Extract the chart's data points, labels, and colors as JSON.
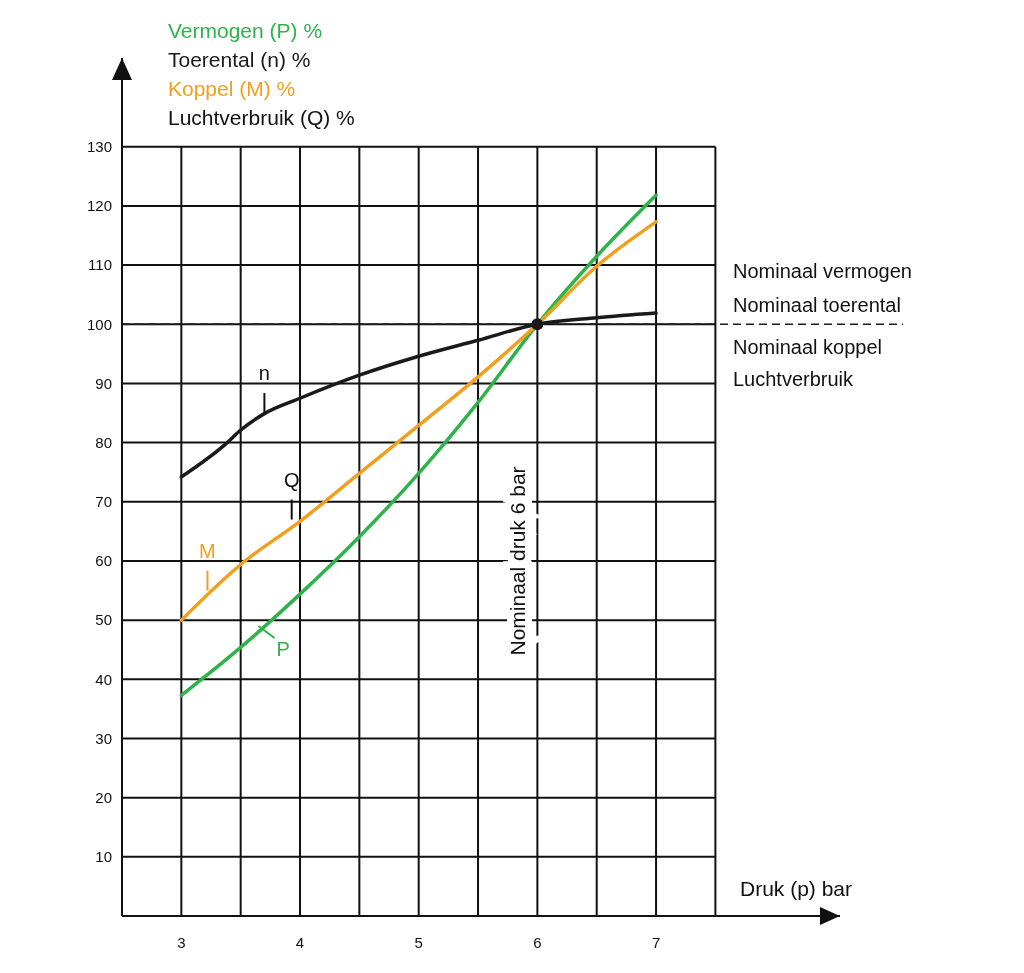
{
  "chart_data": {
    "type": "line",
    "x": [
      3,
      3.37,
      3.5,
      3.7,
      4,
      4.5,
      5,
      5.5,
      6,
      6.5,
      7
    ],
    "series": [
      {
        "name": "Vermogen (P) %",
        "color": "#2db34a",
        "x": [
          3,
          3.5,
          4,
          4.5,
          5,
          5.5,
          6,
          6.5,
          7
        ],
        "values": [
          37.3,
          45.4,
          54.4,
          64.1,
          74.8,
          86.8,
          100,
          111.5,
          121.8
        ]
      },
      {
        "name": "Toerental (n) %",
        "color": "#1a1a1a",
        "values": [
          74.2,
          79.7,
          82.1,
          84.9,
          87.5,
          91.4,
          94.6,
          97.3,
          100,
          101.1,
          101.9
        ]
      },
      {
        "name": "Koppel (M) %",
        "color": "#f0a01e",
        "x": [
          3,
          3.5,
          4,
          4.5,
          5,
          5.5,
          6,
          6.5,
          7
        ],
        "values": [
          50,
          59.4,
          66.7,
          74.8,
          82.9,
          91.1,
          100,
          109.8,
          117.3
        ]
      },
      {
        "type": "scatter",
        "color": "#1a1a1a",
        "x": [
          6
        ],
        "values": [
          100
        ],
        "marker": "circle"
      }
    ],
    "xlabel": "Druk (p) bar",
    "xlim": [
      2.5,
      8.55
    ],
    "xticks": [
      3,
      4,
      5,
      6,
      7
    ],
    "ylim": [
      0,
      145
    ],
    "yticks": [
      {
        "value": 0,
        "label": null
      },
      10,
      20,
      30,
      40,
      50,
      60,
      70,
      80,
      90,
      100,
      110,
      120,
      130
    ],
    "grid": true,
    "legend": "top left",
    "line_style": "solid",
    "ref_lines": [
      {
        "axis": "y",
        "value": 100,
        "line_style": "dashed",
        "color": "#1a1a1a"
      }
    ],
    "annotations": [
      "Luchtverbruik (Q) %",
      "Nominaal vermogen",
      "Nominaal toerental",
      "Nominaal koppel",
      "Luchtverbruik",
      "Nominaal druk 6 bar",
      {
        "text": "n",
        "x": 3.7,
        "y": 85
      },
      {
        "text": "Q",
        "x": 3.93,
        "y": 67
      },
      {
        "text": "M",
        "x": 3.22,
        "y": 55
      },
      {
        "text": "P",
        "x": 3.65,
        "y": 49
      }
    ]
  }
}
